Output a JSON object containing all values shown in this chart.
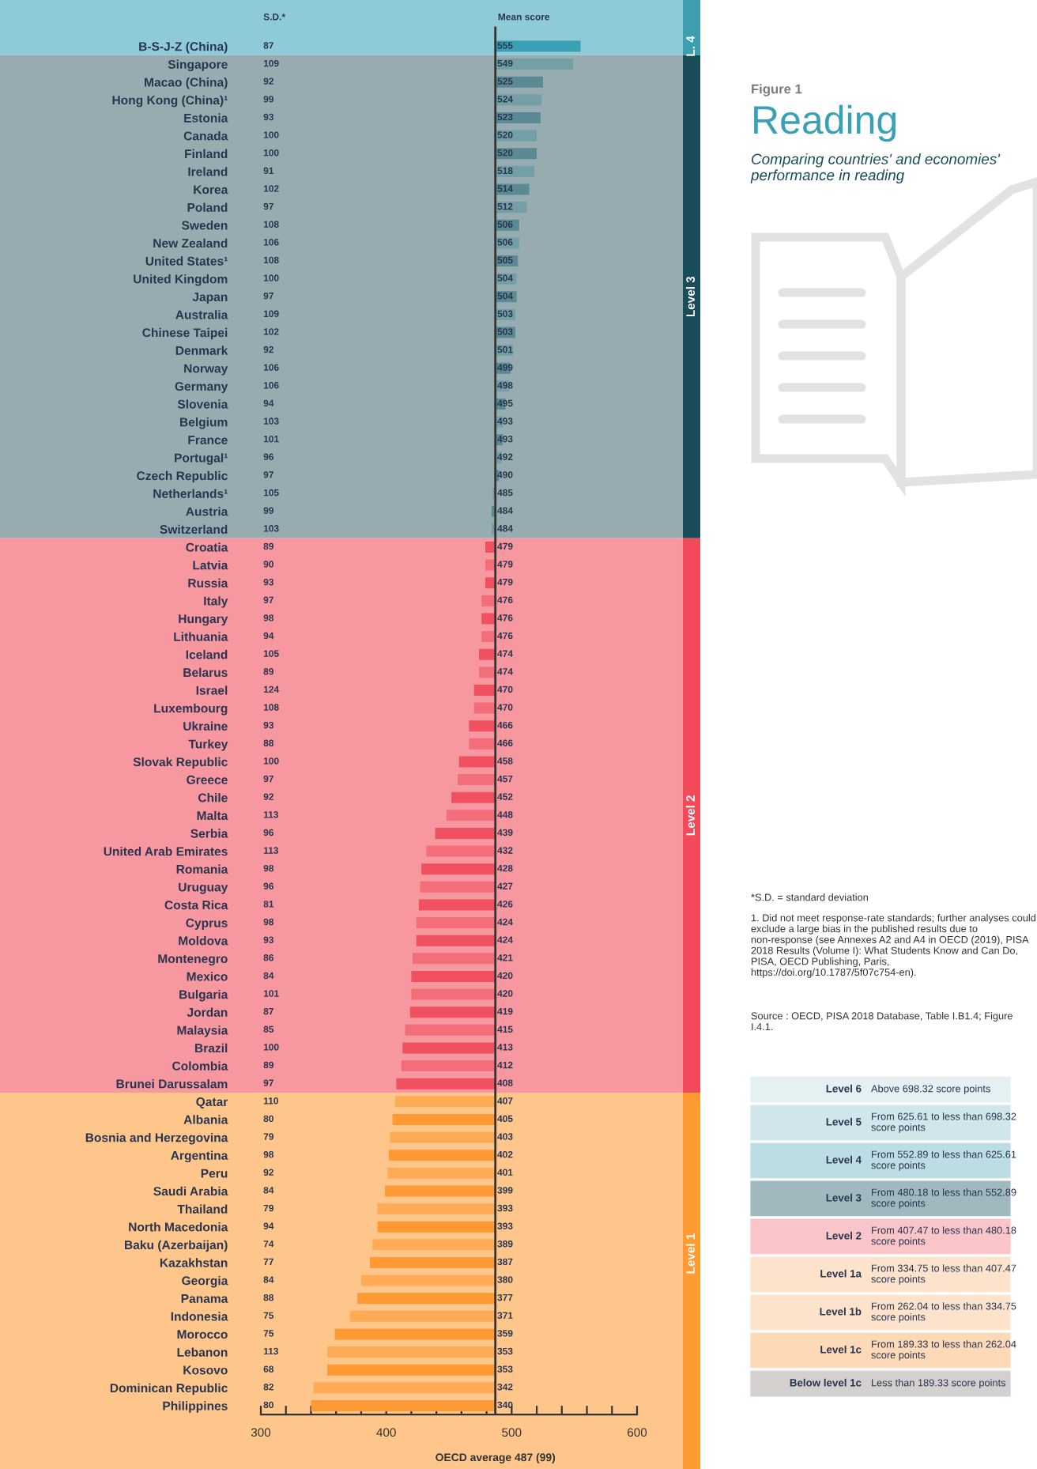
{
  "chart_data": {
    "type": "bar",
    "orientation": "horizontal",
    "title": "Reading",
    "subtitle": "Comparing countries' and economies' performance in reading",
    "categories": [
      "B-S-J-Z (China)",
      "Singapore",
      "Macao (China)",
      "Hong Kong (China)¹",
      "Estonia",
      "Canada",
      "Finland",
      "Ireland",
      "Korea",
      "Poland",
      "Sweden",
      "New Zealand",
      "United States¹",
      "United Kingdom",
      "Japan",
      "Australia",
      "Chinese Taipei",
      "Denmark",
      "Norway",
      "Germany",
      "Slovenia",
      "Belgium",
      "France",
      "Portugal¹",
      "Czech Republic",
      "Netherlands¹",
      "Austria",
      "Switzerland",
      "Croatia",
      "Latvia",
      "Russia",
      "Italy",
      "Hungary",
      "Lithuania",
      "Iceland",
      "Belarus",
      "Israel",
      "Luxembourg",
      "Ukraine",
      "Turkey",
      "Slovak Republic",
      "Greece",
      "Chile",
      "Malta",
      "Serbia",
      "United Arab Emirates",
      "Romania",
      "Uruguay",
      "Costa Rica",
      "Cyprus",
      "Moldova",
      "Montenegro",
      "Mexico",
      "Bulgaria",
      "Jordan",
      "Malaysia",
      "Brazil",
      "Colombia",
      "Brunei Darussalam",
      "Qatar",
      "Albania",
      "Bosnia and Herzegovina",
      "Argentina",
      "Peru",
      "Saudi Arabia",
      "Thailand",
      "North Macedonia",
      "Baku (Azerbaijan)",
      "Kazakhstan",
      "Georgia",
      "Panama",
      "Indonesia",
      "Morocco",
      "Lebanon",
      "Kosovo",
      "Dominican Republic",
      "Philippines"
    ],
    "base": [
      487,
      487,
      487,
      487,
      487,
      487,
      487,
      487,
      487,
      487,
      487,
      487,
      487,
      487,
      487,
      487,
      487,
      487,
      487,
      487,
      487,
      487,
      487,
      487,
      487,
      487,
      487,
      487,
      487,
      487,
      487,
      487,
      487,
      487,
      487,
      487,
      487,
      487,
      487,
      487,
      487,
      487,
      487,
      487,
      487,
      487,
      487,
      487,
      487,
      487,
      487,
      487,
      487,
      487,
      487,
      487,
      487,
      487,
      487,
      487,
      487,
      487,
      487,
      487,
      487,
      487,
      487,
      487,
      487,
      487,
      487,
      487,
      487,
      487,
      487,
      487,
      487
    ],
    "values": [
      68,
      62,
      38,
      37,
      36,
      33,
      33,
      31,
      27,
      25,
      19,
      19,
      18,
      17,
      17,
      16,
      16,
      14,
      12,
      11,
      8,
      6,
      6,
      5,
      3,
      -2,
      -3,
      -3,
      -8,
      -8,
      -8,
      -11,
      -11,
      -11,
      -13,
      -13,
      -17,
      -17,
      -21,
      -21,
      -29,
      -30,
      -35,
      -39,
      -48,
      -55,
      -59,
      -60,
      -61,
      -63,
      -63,
      -66,
      -67,
      -67,
      -68,
      -72,
      -74,
      -75,
      -79,
      -80,
      -82,
      -84,
      -85,
      -86,
      -88,
      -94,
      -94,
      -98,
      -100,
      -107,
      -110,
      -116,
      -128,
      -134,
      -134,
      -145,
      -147
    ],
    "value_labels": [
      "555",
      "549",
      "525",
      "524",
      "523",
      "520",
      "520",
      "518",
      "514",
      "512",
      "506",
      "506",
      "505",
      "504",
      "504",
      "503",
      "503",
      "501",
      "499",
      "498",
      "495",
      "493",
      "493",
      "492",
      "490",
      "485",
      "484",
      "484",
      "479",
      "479",
      "479",
      "476",
      "476",
      "476",
      "474",
      "474",
      "470",
      "470",
      "466",
      "466",
      "458",
      "457",
      "452",
      "448",
      "439",
      "432",
      "428",
      "427",
      "426",
      "424",
      "424",
      "421",
      "420",
      "420",
      "419",
      "415",
      "413",
      "412",
      "408",
      "407",
      "405",
      "403",
      "402",
      "401",
      "399",
      "393",
      "393",
      "389",
      "387",
      "380",
      "377",
      "371",
      "359",
      "353",
      "353",
      "342",
      "340"
    ],
    "colors": [
      "#3ba0b3",
      "#749fa7",
      "#5b8a94",
      "#749fa7",
      "#5b8a94",
      "#749fa7",
      "#5b8a94",
      "#749fa7",
      "#5b8a94",
      "#749fa7",
      "#5b8a94",
      "#749fa7",
      "#5b8a94",
      "#749fa7",
      "#5b8a94",
      "#749fa7",
      "#5b8a94",
      "#749fa7",
      "#5b8a94",
      "#749fa7",
      "#5b8a94",
      "#749fa7",
      "#5b8a94",
      "#749fa7",
      "#5b8a94",
      "#749fa7",
      "#5b8a94",
      "#749fa7",
      "#f0505f",
      "#f46d7b",
      "#f0505f",
      "#f46d7b",
      "#f0505f",
      "#f46d7b",
      "#f0505f",
      "#f46d7b",
      "#f0505f",
      "#f46d7b",
      "#f0505f",
      "#f46d7b",
      "#f0505f",
      "#f46d7b",
      "#f0505f",
      "#f46d7b",
      "#f0505f",
      "#f46d7b",
      "#f0505f",
      "#f46d7b",
      "#f0505f",
      "#f46d7b",
      "#f0505f",
      "#f46d7b",
      "#f0505f",
      "#f46d7b",
      "#f0505f",
      "#f46d7b",
      "#f0505f",
      "#f46d7b",
      "#f0505f",
      "#ffab55",
      "#ff9933",
      "#ffab55",
      "#ff9933",
      "#ffab55",
      "#ff9933",
      "#ffab55",
      "#ff9933",
      "#ffab55",
      "#ff9933",
      "#ffab55",
      "#ff9933",
      "#ffab55",
      "#ff9933",
      "#ffab55",
      "#ff9933",
      "#ffab55",
      "#ff9933"
    ],
    "xlim": [
      300,
      600
    ],
    "xticks": [
      300,
      {
        "value": 320,
        "label": null
      },
      {
        "value": 340,
        "label": null
      },
      {
        "value": 360,
        "label": null
      },
      {
        "value": 380,
        "label": null
      },
      400,
      {
        "value": 420,
        "label": null
      },
      {
        "value": 440,
        "label": null
      },
      {
        "value": 460,
        "label": null
      },
      {
        "value": 480,
        "label": null
      },
      500,
      {
        "value": 520,
        "label": null
      },
      {
        "value": 540,
        "label": null
      },
      {
        "value": 560,
        "label": null
      },
      {
        "value": 580,
        "label": null
      },
      600
    ],
    "ref_lines": [
      {
        "axis": "x",
        "value": 487,
        "label": "OECD average 487 (99)",
        "color": "#333333"
      }
    ],
    "bands": [
      {
        "axis": "y",
        "from": "B-S-J-Z (China)",
        "to": "B-S-J-Z (China)",
        "label": "L. 4",
        "color": "#8ecbd6"
      },
      {
        "axis": "y",
        "from": "Singapore",
        "to": "Switzerland",
        "label": "Level 3",
        "color": "#96acb0"
      },
      {
        "axis": "y",
        "from": "Croatia",
        "to": "Brunei Darussalam",
        "label": "Level 2",
        "color": "#f7979f"
      },
      {
        "axis": "y",
        "from": "Qatar",
        "to": "Philippines",
        "label": "Level 1",
        "color": "#ffc68c"
      }
    ],
    "grid": false,
    "legend": false,
    "annotations": [
      "Figure 1",
      "S.D.*",
      "Mean score",
      "*S.D. = standard deviation",
      "1. Did not meet response-rate standards; further analyses could exclude a large bias in the published results due to non-response (see Annexes A2 and A4 in OECD (2019), PISA 2018 Results (Volume I): What Students Know and Can Do, PISA, OECD Publishing, Paris, https://doi.org/10.1787/5f07c754-en).",
      "Source : OECD, PISA 2018 Database, Table I.B1.4; Figure I.4.1.",
      "Level 6",
      "Above 698.32 score points",
      "Level 5",
      "From 625.61 to less than 698.32 score points",
      "Level 4",
      "From 552.89 to less than 625.61 score points",
      "Level 3",
      "From 480.18 to less than 552.89 score points",
      "Level 2",
      "From 407.47 to less than 480.18 score points",
      "Level 1a",
      "From 334.75 to less than 407.47 score points",
      "Level 1b",
      "From 262.04 to less than 334.75 score points",
      "Level 1c",
      "From 189.33 to less than 262.04 score points",
      "Below level 1c",
      "Less than 189.33 score points",
      "87",
      "109",
      "92",
      "99",
      "93",
      "100",
      "100",
      "91",
      "102",
      "97",
      "108",
      "106",
      "108",
      "100",
      "97",
      "109",
      "102",
      "92",
      "106",
      "106",
      "94",
      "103",
      "101",
      "96",
      "97",
      "105",
      "99",
      "103",
      "89",
      "90",
      "93",
      "97",
      "98",
      "94",
      "105",
      "89",
      "124",
      "108",
      "93",
      "88",
      "100",
      "97",
      "92",
      "113",
      "96",
      "113",
      "98",
      "96",
      "81",
      "98",
      "93",
      "86",
      "84",
      "101",
      "87",
      "85",
      "100",
      "89",
      "97",
      "110",
      "80",
      "79",
      "98",
      "92",
      "84",
      "79",
      "94",
      "74",
      "77",
      "84",
      "88",
      "75",
      "75",
      "113",
      "68",
      "82",
      "80"
    ]
  }
}
